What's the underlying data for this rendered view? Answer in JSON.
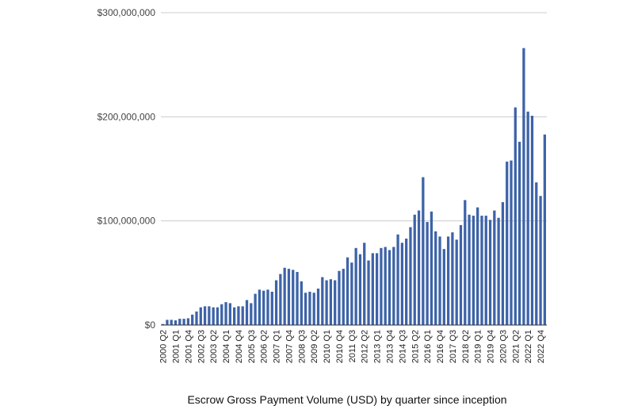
{
  "chart_data": {
    "type": "bar",
    "title": "",
    "xlabel": "Escrow Gross Payment Volume (USD) by quarter since inception",
    "ylabel": "",
    "ylim": [
      0,
      300000000
    ],
    "y_ticks": [
      {
        "value": 0,
        "label": "$0"
      },
      {
        "value": 100000000,
        "label": "$100,000,000"
      },
      {
        "value": 200000000,
        "label": "$200,000,000"
      },
      {
        "value": 300000000,
        "label": "$300,000,000"
      }
    ],
    "grid": true,
    "legend": "none",
    "bar_color": "#3d63a8",
    "categories": [
      "2000 Q2",
      "2000 Q3",
      "2000 Q4",
      "2001 Q1",
      "2001 Q2",
      "2001 Q3",
      "2001 Q4",
      "2002 Q1",
      "2002 Q2",
      "2002 Q3",
      "2002 Q4",
      "2003 Q1",
      "2003 Q2",
      "2003 Q3",
      "2003 Q4",
      "2004 Q1",
      "2004 Q2",
      "2004 Q3",
      "2004 Q4",
      "2005 Q1",
      "2005 Q2",
      "2005 Q3",
      "2005 Q4",
      "2006 Q1",
      "2006 Q2",
      "2006 Q3",
      "2006 Q4",
      "2007 Q1",
      "2007 Q2",
      "2007 Q3",
      "2007 Q4",
      "2008 Q1",
      "2008 Q2",
      "2008 Q3",
      "2008 Q4",
      "2009 Q1",
      "2009 Q2",
      "2009 Q3",
      "2009 Q4",
      "2010 Q1",
      "2010 Q2",
      "2010 Q3",
      "2010 Q4",
      "2011 Q1",
      "2011 Q2",
      "2011 Q3",
      "2011 Q4",
      "2012 Q1",
      "2012 Q2",
      "2012 Q3",
      "2012 Q4",
      "2013 Q1",
      "2013 Q2",
      "2013 Q3",
      "2013 Q4",
      "2014 Q1",
      "2014 Q2",
      "2014 Q3",
      "2014 Q4",
      "2015 Q1",
      "2015 Q2",
      "2015 Q3",
      "2015 Q4",
      "2016 Q1",
      "2016 Q2",
      "2016 Q3",
      "2016 Q4",
      "2017 Q1",
      "2017 Q2",
      "2017 Q3",
      "2017 Q4",
      "2018 Q1",
      "2018 Q2",
      "2018 Q3",
      "2018 Q4",
      "2019 Q1",
      "2019 Q2",
      "2019 Q3",
      "2019 Q4",
      "2020 Q1",
      "2020 Q2",
      "2020 Q3",
      "2020 Q4",
      "2021 Q1",
      "2021 Q2",
      "2021 Q3",
      "2021 Q4",
      "2022 Q1",
      "2022 Q2",
      "2022 Q3",
      "2022 Q4",
      "2023 Q1"
    ],
    "values": [
      1000000,
      5000000,
      5000000,
      4500000,
      6000000,
      6000000,
      6500000,
      10000000,
      13000000,
      17000000,
      18000000,
      18000000,
      17000000,
      17000000,
      20000000,
      22000000,
      21000000,
      17000000,
      18000000,
      18000000,
      24000000,
      21000000,
      30000000,
      34000000,
      33000000,
      34000000,
      32000000,
      43000000,
      49000000,
      55000000,
      54000000,
      53000000,
      51000000,
      42000000,
      31000000,
      32000000,
      31000000,
      35000000,
      46000000,
      43000000,
      44000000,
      43000000,
      52000000,
      54000000,
      65000000,
      60000000,
      74000000,
      68000000,
      79000000,
      62000000,
      69000000,
      69000000,
      74000000,
      75000000,
      72000000,
      75000000,
      87000000,
      79000000,
      83000000,
      94000000,
      106000000,
      110000000,
      142000000,
      99000000,
      109000000,
      90000000,
      85000000,
      73000000,
      85000000,
      89000000,
      82000000,
      96000000,
      120000000,
      106000000,
      105000000,
      113000000,
      105000000,
      105000000,
      101000000,
      110000000,
      103000000,
      118000000,
      157000000,
      158000000,
      209000000,
      176000000,
      266000000,
      205000000,
      201000000,
      137000000,
      124000000,
      183000000
    ]
  }
}
